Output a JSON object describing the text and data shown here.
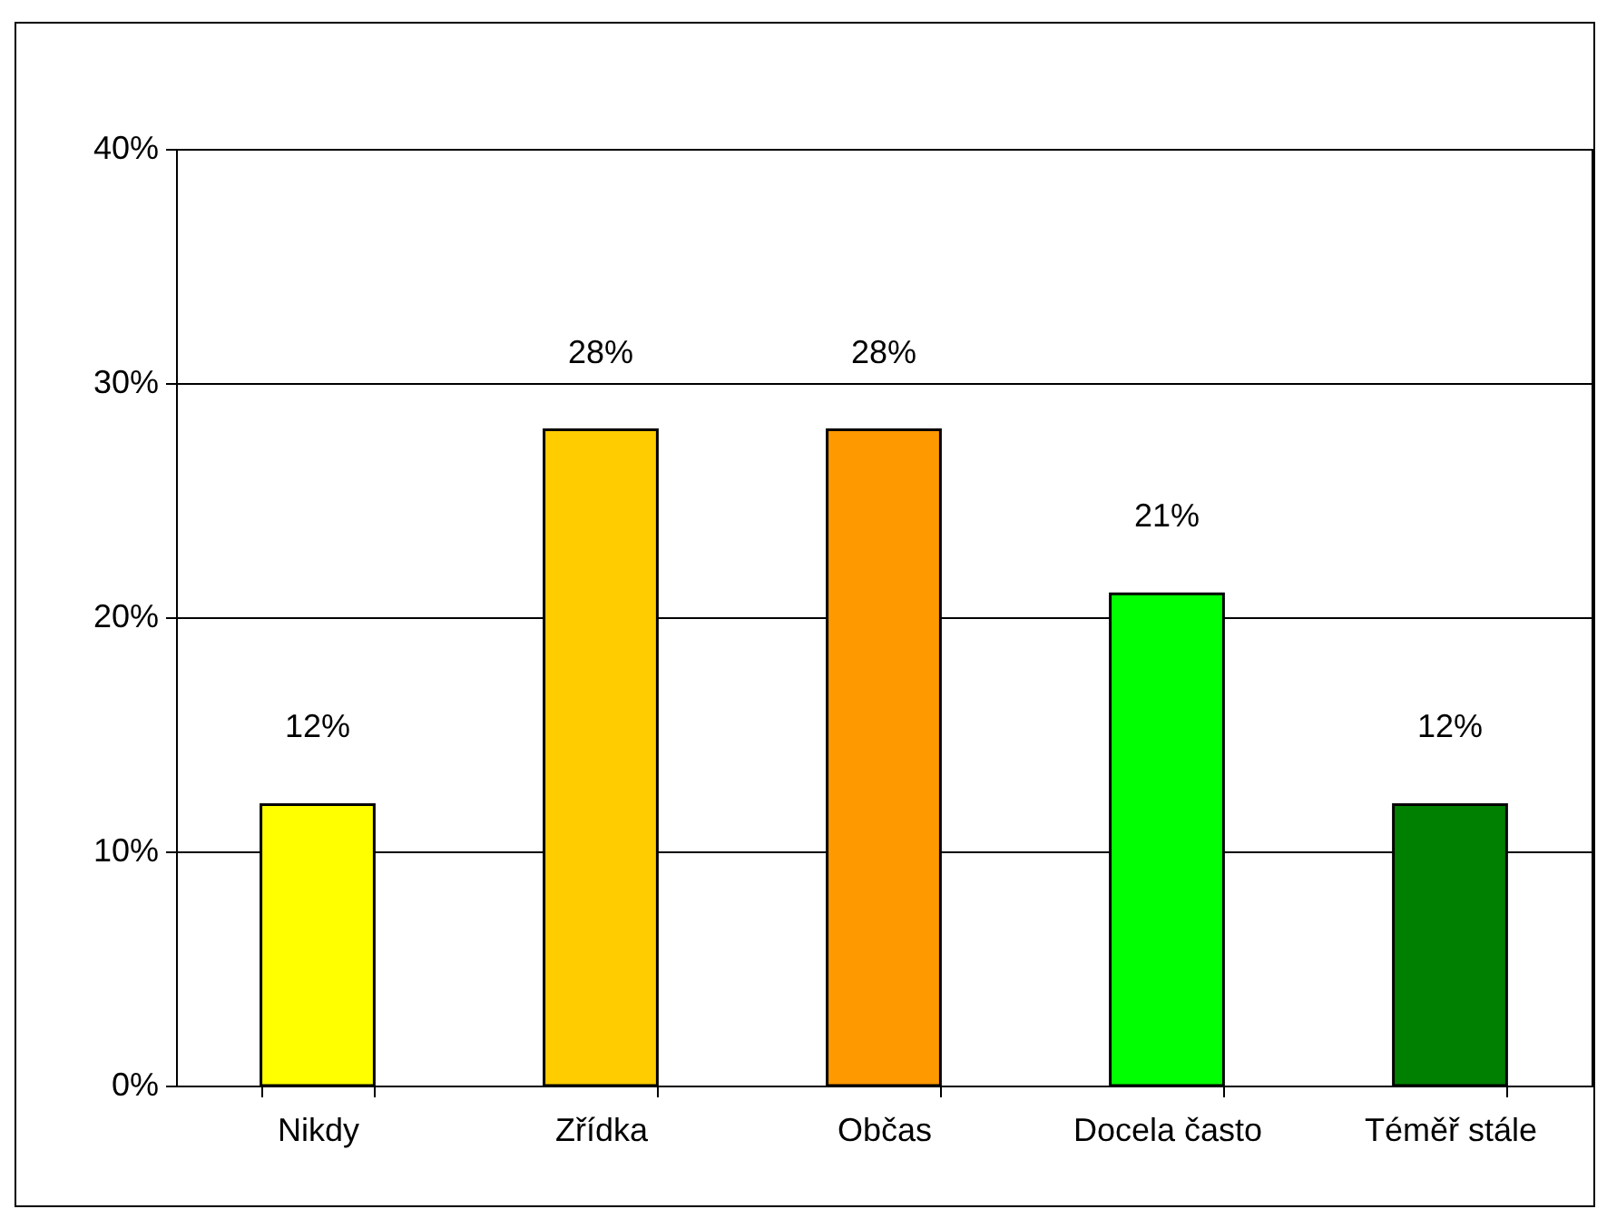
{
  "chart_data": {
    "type": "bar",
    "categories": [
      "Nikdy",
      "Zřídka",
      "Občas",
      "Docela často",
      "Téměř stále"
    ],
    "values": [
      12,
      28,
      28,
      21,
      12
    ],
    "value_labels": [
      "12%",
      "28%",
      "28%",
      "21%",
      "12%"
    ],
    "colors": [
      "#ffff00",
      "#ffcc00",
      "#ff9900",
      "#00ff00",
      "#008000"
    ],
    "ylim": [
      0,
      40
    ],
    "yticks": [
      {
        "value": 0,
        "label": "0%"
      },
      {
        "value": 10,
        "label": "10%"
      },
      {
        "value": 20,
        "label": "20%"
      },
      {
        "value": 30,
        "label": "30%"
      },
      {
        "value": 40,
        "label": "40%"
      }
    ],
    "grid": "y"
  }
}
